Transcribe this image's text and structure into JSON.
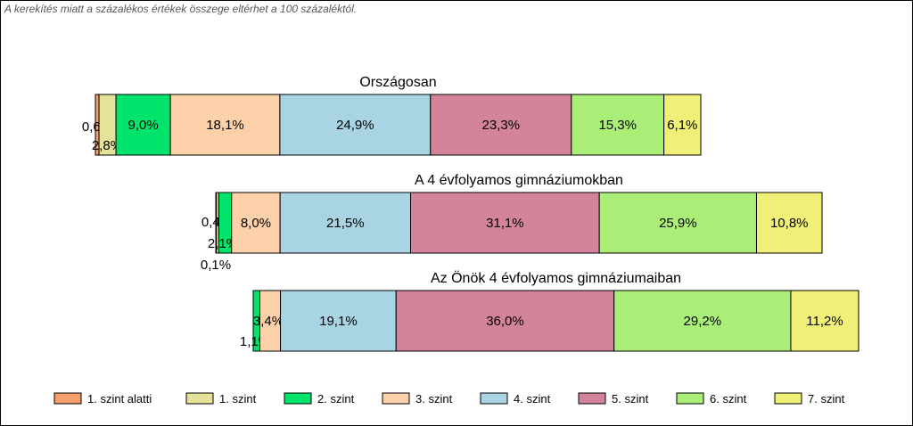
{
  "note": "A kerekítés miatt a  százalékos értékek összege eltérhet a 100 százaléktól.",
  "chart_data": {
    "type": "bar",
    "orientation": "horizontal-stacked-100",
    "legend_position": "bottom",
    "categories": [
      "1. szint alatti",
      "1. szint",
      "2. szint",
      "3. szint",
      "4. szint",
      "5. szint",
      "6. szint",
      "7. szint"
    ],
    "colors": [
      "#f4a06c",
      "#e6e29a",
      "#00e46c",
      "#fcd0a8",
      "#a8d4e4",
      "#d4849a",
      "#aaee78",
      "#f0f078"
    ],
    "bars": [
      {
        "title": "Országosan",
        "values": [
          0.6,
          2.8,
          9.0,
          18.1,
          24.9,
          23.3,
          15.3,
          6.1
        ],
        "labels": [
          "0,6%",
          "2,8%",
          "9,0%",
          "18,1%",
          "24,9%",
          "23,3%",
          "15,3%",
          "6,1%"
        ]
      },
      {
        "title": "A 4 évfolyamos gimnáziumokban",
        "values": [
          0.1,
          0.4,
          2.1,
          8.0,
          21.5,
          31.1,
          25.9,
          10.8
        ],
        "labels": [
          "0,1%",
          "0,4%",
          "2,1%",
          "8,0%",
          "21,5%",
          "31,1%",
          "25,9%",
          "10,8%"
        ]
      },
      {
        "title": "Az Önök 4 évfolyamos gimnáziumaiban",
        "values": [
          0.0,
          0.0,
          1.1,
          3.4,
          19.1,
          36.0,
          29.2,
          11.2
        ],
        "labels": [
          "",
          "",
          "1,1%",
          "3,4%",
          "19,1%",
          "36,0%",
          "29,2%",
          "11,2%"
        ]
      }
    ]
  }
}
